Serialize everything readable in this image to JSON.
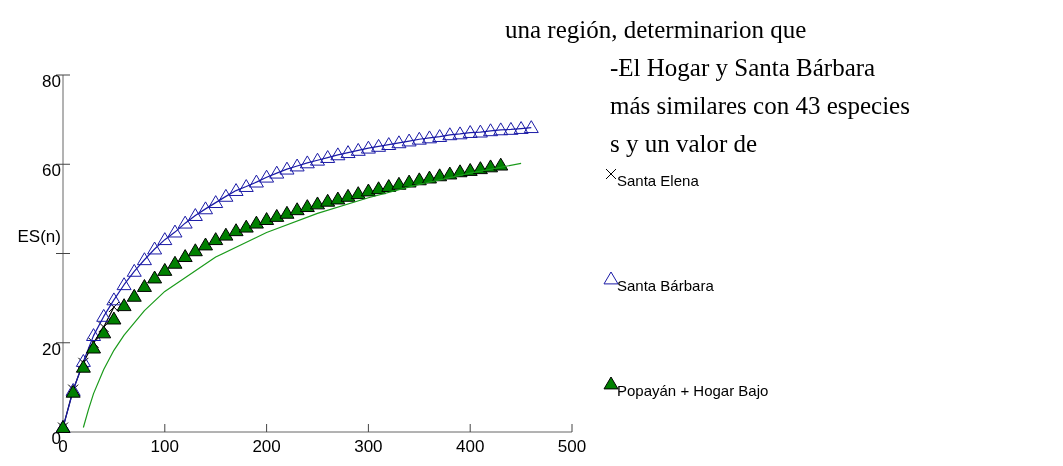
{
  "chart_data": {
    "type": "line",
    "ylabel": "ES(n)",
    "xlim": [
      0,
      500
    ],
    "xticks": [
      0,
      100,
      200,
      300,
      400,
      500
    ],
    "ylim": [
      0,
      80
    ],
    "yticks": [
      0,
      20,
      {
        "value": 40,
        "label": null
      },
      60,
      80
    ],
    "legend": "right",
    "annotations": [
      "una región, determinarion que",
      "-El Hogar y Santa Bárbara",
      "más similares con 43 especies",
      "s y un valor de"
    ],
    "series": [
      {
        "name": "Santa Elena",
        "color": "#000000",
        "marker": "cross",
        "x": [
          0,
          10,
          20,
          30,
          40,
          50
        ],
        "values": [
          1,
          9.5,
          15.5,
          20,
          23.5,
          28
        ]
      },
      {
        "name": "Santa Bárbara",
        "color": "#1a1aa6",
        "marker": "triangle",
        "x": [
          0,
          10,
          20,
          30,
          40,
          50,
          60,
          70,
          80,
          90,
          100,
          110,
          120,
          130,
          140,
          150,
          160,
          170,
          180,
          190,
          200,
          210,
          220,
          230,
          240,
          250,
          260,
          270,
          280,
          290,
          300,
          310,
          320,
          330,
          340,
          350,
          360,
          370,
          380,
          390,
          400,
          410,
          420,
          430,
          440,
          450,
          460
        ],
        "values": [
          1,
          9.3,
          15.8,
          21.6,
          25.9,
          29.6,
          33,
          36,
          38.6,
          41,
          43.1,
          44.8,
          46.8,
          48.5,
          50,
          51.4,
          52.8,
          54.1,
          55,
          56,
          57.1,
          58,
          58.9,
          59.6,
          60.3,
          60.9,
          61.5,
          62.1,
          62.6,
          63.1,
          63.6,
          64,
          64.4,
          64.8,
          65.2,
          65.6,
          65.9,
          66.2,
          66.6,
          66.8,
          67.1,
          67.2,
          67.5,
          67.7,
          67.8,
          68,
          68.2
        ]
      },
      {
        "name": "Popayán + Hogar Bajo",
        "type": "scatter",
        "color": "#008000",
        "marker": "triangle",
        "x": [
          0,
          10,
          20,
          30,
          40,
          50,
          60,
          70,
          80,
          90,
          100,
          110,
          120,
          130,
          140,
          150,
          160,
          170,
          180,
          190,
          200,
          210,
          220,
          230,
          240,
          250,
          260,
          270,
          280,
          290,
          300,
          310,
          320,
          330,
          340,
          350,
          360,
          370,
          380,
          390,
          400,
          410,
          420,
          430
        ],
        "values": [
          1,
          8.9,
          14.5,
          18.8,
          22.2,
          25.3,
          28.3,
          30.4,
          32.6,
          34.5,
          36.2,
          37.8,
          39.3,
          40.6,
          41.9,
          43.1,
          44.1,
          45.1,
          45.9,
          46.8,
          47.6,
          48.3,
          49,
          49.8,
          50.5,
          51.1,
          51.7,
          52.2,
          52.8,
          53.4,
          54,
          54.5,
          55,
          55.5,
          56,
          56.5,
          56.9,
          57.4,
          57.8,
          58.3,
          58.6,
          59,
          59.4,
          59.8
        ]
      },
      {
        "type": "line",
        "color": "#1a9a1a",
        "marker": "none",
        "x": [
          20,
          25,
          30,
          40,
          50,
          60,
          80,
          100,
          150,
          200,
          250,
          300,
          350,
          400,
          450
        ],
        "values": [
          1,
          5,
          8.6,
          14,
          18.3,
          21.7,
          27.2,
          31.5,
          39.2,
          44.7,
          49,
          52.5,
          55.5,
          58,
          60.2
        ]
      }
    ]
  }
}
